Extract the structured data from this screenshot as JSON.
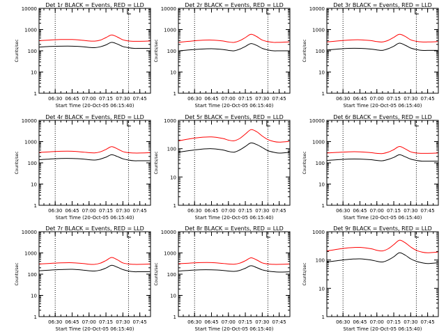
{
  "panel_title_suffix": "BLACK = Events, RED = LLD",
  "ylabel": "Counts/sec",
  "xlabel": "Start Time (20-Oct-05 06:15:40)",
  "colors": {
    "events": "#000000",
    "lld": "#ff0000",
    "background": "#ffffff"
  },
  "chart_data": [
    {
      "type": "line",
      "title": "Det 1r",
      "ylabel": "Counts/sec",
      "xlabel": "Start Time (20-Oct-05 06:15:40)",
      "yscale": "log",
      "ylim": [
        1,
        10000
      ],
      "xlim": [
        "06:15:40",
        "07:54:30"
      ],
      "ytick_labels": [
        "1",
        "10",
        "100",
        "1000",
        "10000"
      ],
      "xtick_labels": [
        "06:30",
        "06:45",
        "07:00",
        "07:15",
        "07:30",
        "07:45"
      ],
      "vlines": [
        "06:30",
        "07:35"
      ],
      "series": [
        {
          "name": "Events",
          "color": "#000000",
          "x": [
            "06:16",
            "06:25",
            "06:35",
            "06:45",
            "06:55",
            "07:00",
            "07:05",
            "07:10",
            "07:15",
            "07:20",
            "07:25",
            "07:30",
            "07:35",
            "07:40",
            "07:45",
            "07:54"
          ],
          "values": [
            150,
            160,
            165,
            165,
            155,
            145,
            140,
            155,
            190,
            250,
            210,
            160,
            140,
            130,
            130,
            130
          ]
        },
        {
          "name": "LLD",
          "color": "#ff0000",
          "x": [
            "06:16",
            "06:25",
            "06:35",
            "06:45",
            "06:55",
            "07:00",
            "07:05",
            "07:10",
            "07:15",
            "07:20",
            "07:25",
            "07:30",
            "07:35",
            "07:40",
            "07:45",
            "07:54"
          ],
          "values": [
            300,
            320,
            340,
            340,
            310,
            290,
            285,
            320,
            420,
            560,
            450,
            330,
            290,
            280,
            280,
            290
          ]
        }
      ]
    },
    {
      "type": "line",
      "title": "Det 2r",
      "ylabel": "Counts/sec",
      "xlabel": "Start Time (20-Oct-05 06:15:40)",
      "yscale": "log",
      "ylim": [
        1,
        10000
      ],
      "xlim": [
        "06:15:40",
        "07:54:30"
      ],
      "ytick_labels": [
        "1",
        "10",
        "100",
        "1000",
        "10000"
      ],
      "xtick_labels": [
        "06:30",
        "06:45",
        "07:00",
        "07:15",
        "07:30",
        "07:45"
      ],
      "vlines": [
        "06:30",
        "07:35"
      ],
      "series": [
        {
          "name": "Events",
          "color": "#000000",
          "x": [
            "06:16",
            "06:25",
            "06:35",
            "06:45",
            "06:55",
            "07:00",
            "07:05",
            "07:10",
            "07:15",
            "07:20",
            "07:25",
            "07:30",
            "07:35",
            "07:40",
            "07:45",
            "07:54"
          ],
          "values": [
            100,
            110,
            120,
            125,
            115,
            105,
            100,
            120,
            160,
            220,
            180,
            130,
            110,
            100,
            100,
            100
          ]
        },
        {
          "name": "LLD",
          "color": "#ff0000",
          "x": [
            "06:16",
            "06:25",
            "06:35",
            "06:45",
            "06:55",
            "07:00",
            "07:05",
            "07:10",
            "07:15",
            "07:20",
            "07:25",
            "07:30",
            "07:35",
            "07:40",
            "07:45",
            "07:54"
          ],
          "values": [
            250,
            280,
            310,
            320,
            290,
            260,
            250,
            300,
            420,
            600,
            470,
            320,
            270,
            250,
            250,
            260
          ]
        }
      ]
    },
    {
      "type": "line",
      "title": "Det 3r",
      "ylabel": "Counts/sec",
      "xlabel": "Start Time (20-Oct-05 06:15:40)",
      "yscale": "log",
      "ylim": [
        1,
        10000
      ],
      "xlim": [
        "06:15:40",
        "07:54:30"
      ],
      "ytick_labels": [
        "1",
        "10",
        "100",
        "1000",
        "10000"
      ],
      "xtick_labels": [
        "06:30",
        "06:45",
        "07:00",
        "07:15",
        "07:30",
        "07:45"
      ],
      "vlines": [
        "06:30",
        "07:35"
      ],
      "series": [
        {
          "name": "Events",
          "color": "#000000",
          "x": [
            "06:16",
            "06:25",
            "06:35",
            "06:45",
            "06:55",
            "07:00",
            "07:05",
            "07:10",
            "07:15",
            "07:20",
            "07:25",
            "07:30",
            "07:35",
            "07:40",
            "07:45",
            "07:54"
          ],
          "values": [
            110,
            120,
            130,
            130,
            120,
            110,
            105,
            125,
            165,
            230,
            185,
            135,
            115,
            105,
            105,
            105
          ]
        },
        {
          "name": "LLD",
          "color": "#ff0000",
          "x": [
            "06:16",
            "06:25",
            "06:35",
            "06:45",
            "06:55",
            "07:00",
            "07:05",
            "07:10",
            "07:15",
            "07:20",
            "07:25",
            "07:30",
            "07:35",
            "07:40",
            "07:45",
            "07:54"
          ],
          "values": [
            260,
            290,
            320,
            330,
            300,
            270,
            260,
            310,
            430,
            600,
            480,
            330,
            280,
            260,
            260,
            270
          ]
        }
      ]
    },
    {
      "type": "line",
      "title": "Det 4r",
      "ylabel": "Counts/sec",
      "xlabel": "Start Time (20-Oct-05 06:15:40)",
      "yscale": "log",
      "ylim": [
        1,
        10000
      ],
      "xlim": [
        "06:15:40",
        "07:54:30"
      ],
      "ytick_labels": [
        "1",
        "10",
        "100",
        "1000",
        "10000"
      ],
      "xtick_labels": [
        "06:30",
        "06:45",
        "07:00",
        "07:15",
        "07:30",
        "07:45"
      ],
      "vlines": [
        "06:30",
        "07:35"
      ],
      "series": [
        {
          "name": "Events",
          "color": "#000000",
          "x": [
            "06:16",
            "06:25",
            "06:35",
            "06:45",
            "06:55",
            "07:00",
            "07:05",
            "07:10",
            "07:15",
            "07:20",
            "07:25",
            "07:30",
            "07:35",
            "07:40",
            "07:45",
            "07:54"
          ],
          "values": [
            140,
            150,
            160,
            160,
            150,
            140,
            135,
            150,
            185,
            240,
            200,
            155,
            135,
            125,
            125,
            125
          ]
        },
        {
          "name": "LLD",
          "color": "#ff0000",
          "x": [
            "06:16",
            "06:25",
            "06:35",
            "06:45",
            "06:55",
            "07:00",
            "07:05",
            "07:10",
            "07:15",
            "07:20",
            "07:25",
            "07:30",
            "07:35",
            "07:40",
            "07:45",
            "07:54"
          ],
          "values": [
            310,
            330,
            350,
            350,
            320,
            300,
            295,
            330,
            430,
            580,
            460,
            340,
            300,
            290,
            290,
            300
          ]
        }
      ]
    },
    {
      "type": "line",
      "title": "Det 5r",
      "ylabel": "Counts/sec",
      "xlabel": "Start Time (20-Oct-05 06:15:40)",
      "yscale": "log",
      "ylim": [
        1,
        1000
      ],
      "xlim": [
        "06:15:40",
        "07:54:30"
      ],
      "ytick_labels": [
        "1",
        "10",
        "100",
        "1000"
      ],
      "xtick_labels": [
        "06:30",
        "06:45",
        "07:00",
        "07:15",
        "07:30",
        "07:45"
      ],
      "vlines": [
        "06:30",
        "07:35"
      ],
      "series": [
        {
          "name": "Events",
          "color": "#000000",
          "x": [
            "06:16",
            "06:25",
            "06:35",
            "06:45",
            "06:55",
            "07:00",
            "07:05",
            "07:10",
            "07:15",
            "07:20",
            "07:25",
            "07:30",
            "07:35",
            "07:40",
            "07:45",
            "07:54"
          ],
          "values": [
            75,
            85,
            95,
            100,
            90,
            80,
            75,
            90,
            120,
            160,
            140,
            110,
            85,
            75,
            70,
            75
          ]
        },
        {
          "name": "LLD",
          "color": "#ff0000",
          "x": [
            "06:16",
            "06:25",
            "06:35",
            "06:45",
            "06:55",
            "07:00",
            "07:05",
            "07:10",
            "07:15",
            "07:20",
            "07:25",
            "07:30",
            "07:35",
            "07:40",
            "07:45",
            "07:54"
          ],
          "values": [
            190,
            220,
            250,
            260,
            230,
            200,
            190,
            230,
            330,
            470,
            400,
            280,
            210,
            180,
            170,
            180
          ]
        }
      ]
    },
    {
      "type": "line",
      "title": "Det 6r",
      "ylabel": "Counts/sec",
      "xlabel": "Start Time (20-Oct-05 06:15:40)",
      "yscale": "log",
      "ylim": [
        1,
        10000
      ],
      "xlim": [
        "06:15:40",
        "07:54:30"
      ],
      "ytick_labels": [
        "1",
        "10",
        "100",
        "1000",
        "10000"
      ],
      "xtick_labels": [
        "06:30",
        "06:45",
        "07:00",
        "07:15",
        "07:30",
        "07:45"
      ],
      "vlines": [
        "06:30",
        "07:35"
      ],
      "series": [
        {
          "name": "Events",
          "color": "#000000",
          "x": [
            "06:16",
            "06:25",
            "06:35",
            "06:45",
            "06:55",
            "07:00",
            "07:05",
            "07:10",
            "07:15",
            "07:20",
            "07:25",
            "07:30",
            "07:35",
            "07:40",
            "07:45",
            "07:54"
          ],
          "values": [
            130,
            140,
            150,
            150,
            140,
            130,
            125,
            145,
            180,
            240,
            195,
            150,
            130,
            120,
            120,
            120
          ]
        },
        {
          "name": "LLD",
          "color": "#ff0000",
          "x": [
            "06:16",
            "06:25",
            "06:35",
            "06:45",
            "06:55",
            "07:00",
            "07:05",
            "07:10",
            "07:15",
            "07:20",
            "07:25",
            "07:30",
            "07:35",
            "07:40",
            "07:45",
            "07:54"
          ],
          "values": [
            290,
            310,
            330,
            330,
            300,
            280,
            275,
            320,
            420,
            590,
            460,
            330,
            290,
            280,
            280,
            290
          ]
        }
      ]
    },
    {
      "type": "line",
      "title": "Det 7r",
      "ylabel": "Counts/sec",
      "xlabel": "Start Time (20-Oct-05 06:15:40)",
      "yscale": "log",
      "ylim": [
        1,
        10000
      ],
      "xlim": [
        "06:15:40",
        "07:54:30"
      ],
      "ytick_labels": [
        "1",
        "10",
        "100",
        "1000",
        "10000"
      ],
      "xtick_labels": [
        "06:30",
        "06:45",
        "07:00",
        "07:15",
        "07:30",
        "07:45"
      ],
      "vlines": [
        "06:30",
        "07:35"
      ],
      "series": [
        {
          "name": "Events",
          "color": "#000000",
          "x": [
            "06:16",
            "06:25",
            "06:35",
            "06:45",
            "06:55",
            "07:00",
            "07:05",
            "07:10",
            "07:15",
            "07:20",
            "07:25",
            "07:30",
            "07:35",
            "07:40",
            "07:45",
            "07:54"
          ],
          "values": [
            145,
            155,
            165,
            170,
            155,
            145,
            140,
            155,
            195,
            260,
            215,
            165,
            140,
            130,
            130,
            130
          ]
        },
        {
          "name": "LLD",
          "color": "#ff0000",
          "x": [
            "06:16",
            "06:25",
            "06:35",
            "06:45",
            "06:55",
            "07:00",
            "07:05",
            "07:10",
            "07:15",
            "07:20",
            "07:25",
            "07:30",
            "07:35",
            "07:40",
            "07:45",
            "07:54"
          ],
          "values": [
            300,
            320,
            340,
            345,
            315,
            295,
            290,
            330,
            440,
            610,
            480,
            340,
            300,
            290,
            290,
            300
          ]
        }
      ]
    },
    {
      "type": "line",
      "title": "Det 8r",
      "ylabel": "Counts/sec",
      "xlabel": "Start Time (20-Oct-05 06:15:40)",
      "yscale": "log",
      "ylim": [
        1,
        10000
      ],
      "xlim": [
        "06:15:40",
        "07:54:30"
      ],
      "ytick_labels": [
        "1",
        "10",
        "100",
        "1000",
        "10000"
      ],
      "xtick_labels": [
        "06:30",
        "06:45",
        "07:00",
        "07:15",
        "07:30",
        "07:45"
      ],
      "vlines": [
        "06:30",
        "07:35"
      ],
      "series": [
        {
          "name": "Events",
          "color": "#000000",
          "x": [
            "06:16",
            "06:25",
            "06:35",
            "06:45",
            "06:55",
            "07:00",
            "07:05",
            "07:10",
            "07:15",
            "07:20",
            "07:25",
            "07:30",
            "07:35",
            "07:40",
            "07:45",
            "07:54"
          ],
          "values": [
            140,
            150,
            160,
            160,
            150,
            140,
            135,
            150,
            190,
            250,
            205,
            160,
            140,
            130,
            125,
            130
          ]
        },
        {
          "name": "LLD",
          "color": "#ff0000",
          "x": [
            "06:16",
            "06:25",
            "06:35",
            "06:45",
            "06:55",
            "07:00",
            "07:05",
            "07:10",
            "07:15",
            "07:20",
            "07:25",
            "07:30",
            "07:35",
            "07:40",
            "07:45",
            "07:54"
          ],
          "values": [
            310,
            330,
            350,
            350,
            320,
            300,
            295,
            330,
            430,
            590,
            470,
            340,
            300,
            290,
            290,
            300
          ]
        }
      ]
    },
    {
      "type": "line",
      "title": "Det 9r",
      "ylabel": "Counts/sec",
      "xlabel": "Start Time (20-Oct-05 06:15:40)",
      "yscale": "log",
      "ylim": [
        1,
        1000
      ],
      "xlim": [
        "06:15:40",
        "07:54:30"
      ],
      "ytick_labels": [
        "1",
        "10",
        "100",
        "1000"
      ],
      "xtick_labels": [
        "06:30",
        "06:45",
        "07:00",
        "07:15",
        "07:30",
        "07:45"
      ],
      "vlines": [
        "06:30",
        "07:35"
      ],
      "series": [
        {
          "name": "Events",
          "color": "#000000",
          "x": [
            "06:16",
            "06:25",
            "06:35",
            "06:45",
            "06:55",
            "07:00",
            "07:05",
            "07:10",
            "07:15",
            "07:20",
            "07:25",
            "07:30",
            "07:35",
            "07:40",
            "07:45",
            "07:54"
          ],
          "values": [
            85,
            95,
            105,
            110,
            100,
            90,
            85,
            100,
            130,
            180,
            150,
            110,
            90,
            80,
            75,
            80
          ]
        },
        {
          "name": "LLD",
          "color": "#ff0000",
          "x": [
            "06:16",
            "06:25",
            "06:35",
            "06:45",
            "06:55",
            "07:00",
            "07:05",
            "07:10",
            "07:15",
            "07:20",
            "07:25",
            "07:30",
            "07:35",
            "07:40",
            "07:45",
            "07:54"
          ],
          "values": [
            210,
            240,
            270,
            280,
            250,
            220,
            210,
            250,
            350,
            500,
            410,
            290,
            220,
            190,
            180,
            190
          ]
        }
      ]
    }
  ]
}
